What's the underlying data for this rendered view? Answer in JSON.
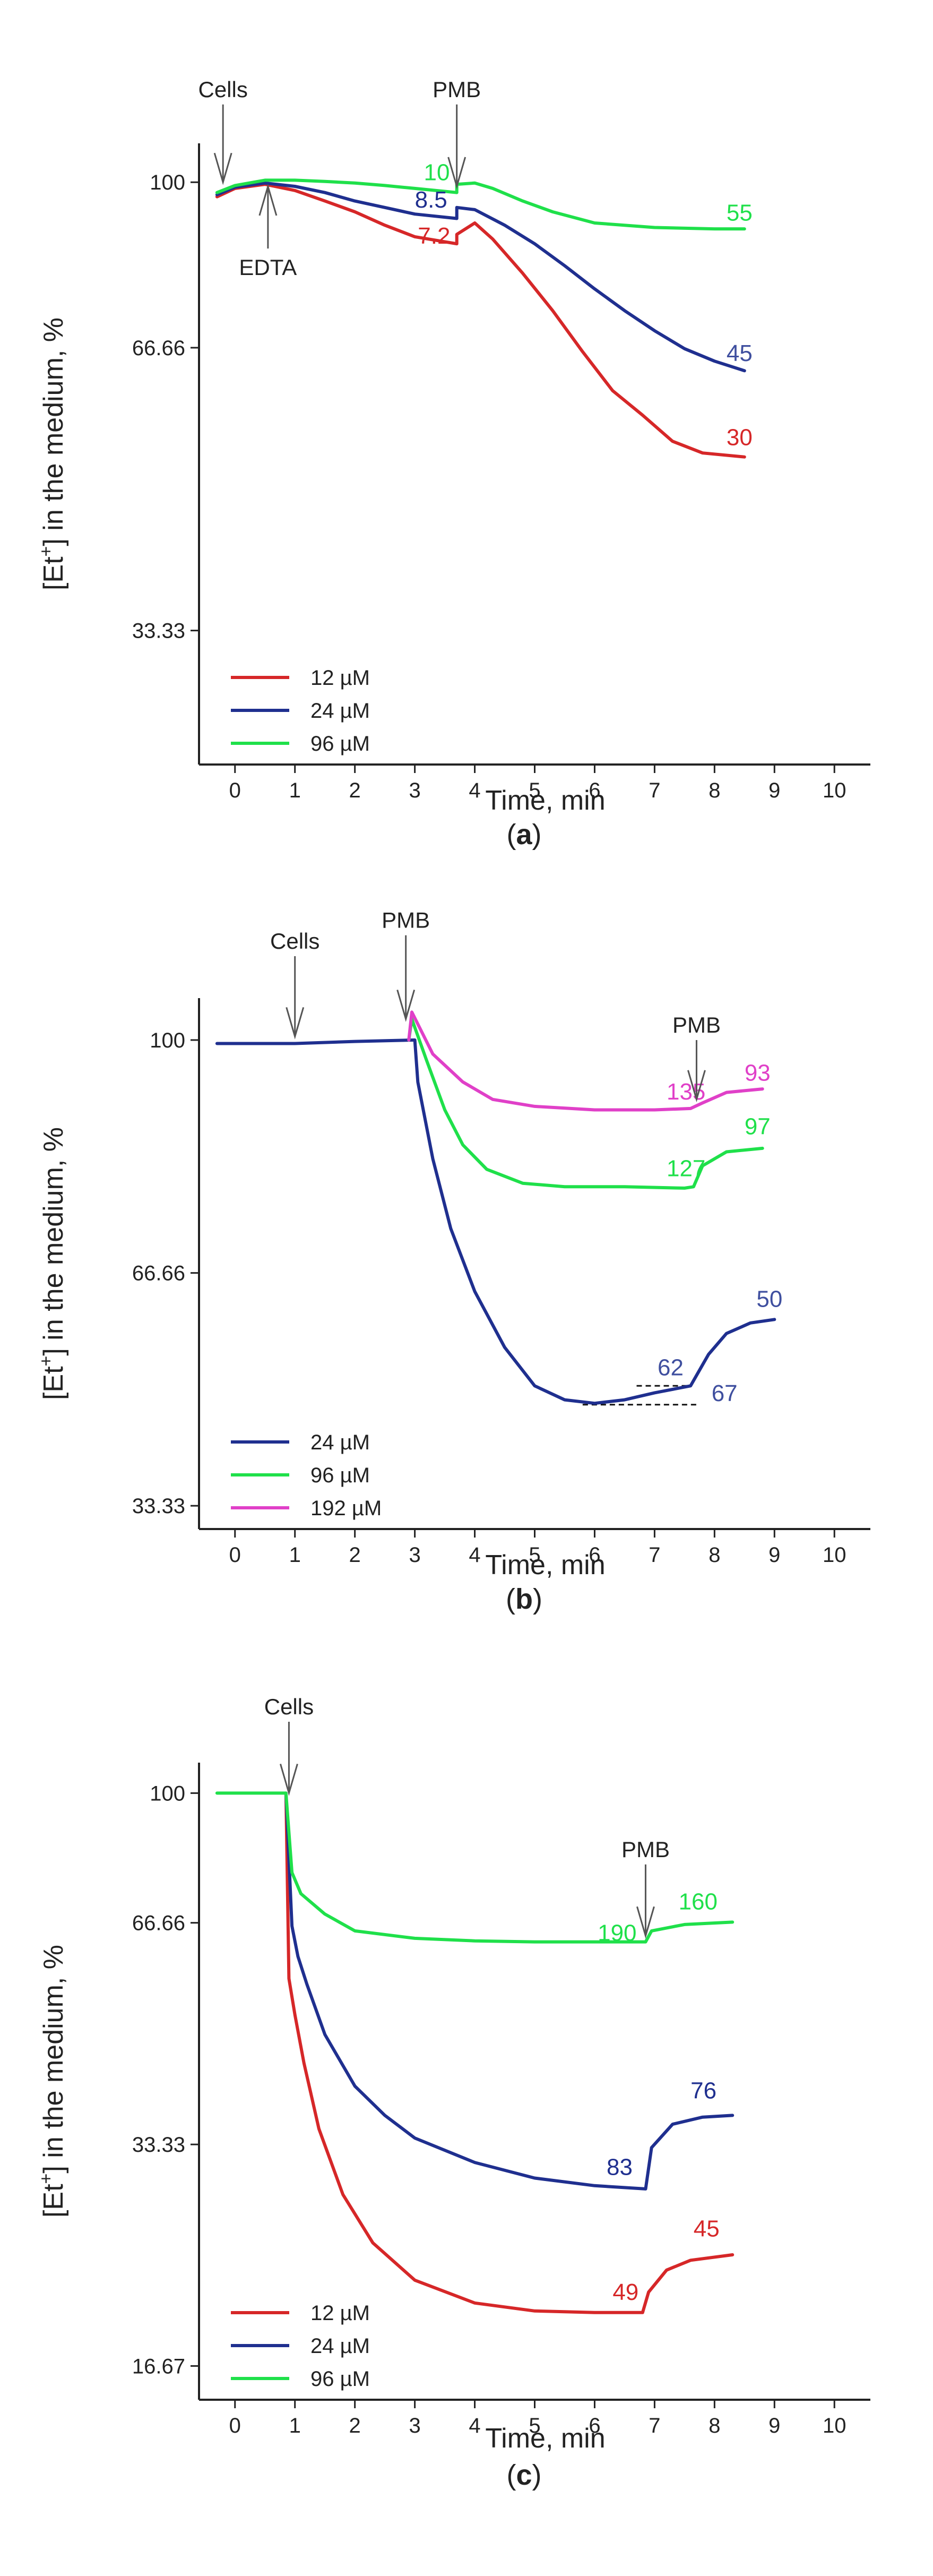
{
  "chart_data": [
    {
      "panel": "a",
      "panel_label": "a",
      "type": "line",
      "xlabel": "Time, min",
      "ylabel": "[Et+] in the medium, %",
      "ylabel_main": "[Et",
      "ylabel_sup": "+",
      "ylabel_rest": "] in the medium, %",
      "xlim": [
        -0.6,
        10.6
      ],
      "ylim": [
        24,
        110
      ],
      "log_y": true,
      "x_ticks": [
        0,
        1,
        2,
        3,
        4,
        5,
        6,
        7,
        8,
        9,
        10
      ],
      "y_ticks": [
        {
          "value": 100,
          "label": "100"
        },
        {
          "value": 66.66,
          "label": "66.66"
        },
        {
          "value": 33.33,
          "label": "33.33"
        }
      ],
      "legend": [
        {
          "label": "12 µM",
          "color": "#d62728"
        },
        {
          "label": "24 µM",
          "color": "#1f2f8f"
        },
        {
          "label": "96 µM",
          "color": "#1fe04a"
        }
      ],
      "series": [
        {
          "name": "12 µM",
          "color": "#d62728",
          "points": [
            [
              -0.3,
              96.5
            ],
            [
              0,
              98.5
            ],
            [
              0.5,
              99.5
            ],
            [
              1,
              98
            ],
            [
              1.5,
              95.5
            ],
            [
              2,
              93
            ],
            [
              2.5,
              90
            ],
            [
              3,
              87.5
            ],
            [
              3.7,
              86
            ],
            [
              3.7,
              88
            ],
            [
              4,
              90.5
            ],
            [
              4.3,
              87
            ],
            [
              4.8,
              80
            ],
            [
              5.3,
              73
            ],
            [
              5.8,
              66
            ],
            [
              6.3,
              60
            ],
            [
              6.8,
              56.5
            ],
            [
              7.3,
              53
            ],
            [
              7.8,
              51.5
            ],
            [
              8.5,
              51
            ]
          ]
        },
        {
          "name": "24 µM",
          "color": "#1f2f8f",
          "points": [
            [
              -0.3,
              97
            ],
            [
              0,
              98.8
            ],
            [
              0.5,
              99.8
            ],
            [
              1,
              99
            ],
            [
              1.5,
              97.5
            ],
            [
              2,
              95.5
            ],
            [
              2.5,
              94
            ],
            [
              3,
              92.5
            ],
            [
              3.7,
              91.5
            ],
            [
              3.7,
              94
            ],
            [
              4,
              93.5
            ],
            [
              4.5,
              90
            ],
            [
              5,
              86
            ],
            [
              5.5,
              81.5
            ],
            [
              6,
              77
            ],
            [
              6.5,
              73
            ],
            [
              7,
              69.5
            ],
            [
              7.5,
              66.5
            ],
            [
              8,
              64.5
            ],
            [
              8.5,
              63
            ]
          ]
        },
        {
          "name": "96 µM",
          "color": "#1fe04a",
          "points": [
            [
              -0.3,
              97.5
            ],
            [
              0,
              99.2
            ],
            [
              0.5,
              100.5
            ],
            [
              1,
              100.5
            ],
            [
              1.5,
              100.2
            ],
            [
              2,
              99.8
            ],
            [
              2.5,
              99.2
            ],
            [
              3,
              98.5
            ],
            [
              3.7,
              97.5
            ],
            [
              3.7,
              99.5
            ],
            [
              4,
              99.8
            ],
            [
              4.3,
              98.5
            ],
            [
              4.8,
              95.5
            ],
            [
              5.3,
              93
            ],
            [
              6,
              90.5
            ],
            [
              7,
              89.5
            ],
            [
              8,
              89.2
            ],
            [
              8.5,
              89.2
            ]
          ]
        }
      ],
      "value_labels": [
        {
          "text": "10",
          "x": 3.15,
          "y": 100.5,
          "color": "#1fe04a"
        },
        {
          "text": "8.5",
          "x": 3.0,
          "y": 94.0,
          "color": "#1f2f8f"
        },
        {
          "text": "7.2",
          "x": 3.05,
          "y": 86.0,
          "color": "#d62728"
        },
        {
          "text": "55",
          "x": 8.2,
          "y": 91.0,
          "color": "#1fe04a"
        },
        {
          "text": "45",
          "x": 8.2,
          "y": 64.5,
          "color": "#3f4f9f"
        },
        {
          "text": "30",
          "x": 8.2,
          "y": 52.5,
          "color": "#d62728"
        }
      ],
      "annotations": [
        {
          "text": "Cells",
          "x": -0.2,
          "y_from": 121,
          "y_to": 100,
          "dir": "down"
        },
        {
          "text": "PMB",
          "x": 3.7,
          "y_from": 121,
          "y_to": 99,
          "dir": "down"
        },
        {
          "text": "EDTA",
          "x": 0.55,
          "y_from": 85,
          "y_to": 99,
          "dir": "up"
        }
      ]
    },
    {
      "panel": "b",
      "panel_label": "b",
      "type": "line",
      "xlabel": "Time, min",
      "ylabel": "[Et+] in the medium, %",
      "ylabel_main": "[Et",
      "ylabel_sup": "+",
      "ylabel_rest": "] in the medium, %",
      "xlim": [
        -0.6,
        10.6
      ],
      "ylim": [
        30,
        106
      ],
      "log_y": false,
      "x_ticks": [
        0,
        1,
        2,
        3,
        4,
        5,
        6,
        7,
        8,
        9,
        10
      ],
      "y_ticks": [
        {
          "value": 100,
          "label": "100"
        },
        {
          "value": 66.66,
          "label": "66.66"
        },
        {
          "value": 33.33,
          "label": "33.33"
        }
      ],
      "legend": [
        {
          "label": "24 µM",
          "color": "#1f2f8f"
        },
        {
          "label": "96 µM",
          "color": "#1fe04a"
        },
        {
          "label": "192 µM",
          "color": "#e040c8"
        }
      ],
      "series": [
        {
          "name": "24 µM",
          "color": "#1f2f8f",
          "points": [
            [
              -0.3,
              99.5
            ],
            [
              1,
              99.5
            ],
            [
              2,
              99.8
            ],
            [
              3,
              100
            ],
            [
              3.05,
              94
            ],
            [
              3.3,
              83
            ],
            [
              3.6,
              73
            ],
            [
              4,
              64
            ],
            [
              4.5,
              56
            ],
            [
              5,
              50.5
            ],
            [
              5.5,
              48.5
            ],
            [
              6,
              48
            ],
            [
              6.5,
              48.5
            ],
            [
              7,
              49.5
            ],
            [
              7.6,
              50.5
            ],
            [
              7.7,
              52
            ],
            [
              7.9,
              55
            ],
            [
              8.2,
              58
            ],
            [
              8.6,
              59.5
            ],
            [
              9,
              60
            ]
          ]
        },
        {
          "name": "96 µM",
          "color": "#1fe04a",
          "points": [
            [
              2.9,
              100
            ],
            [
              2.95,
              103
            ],
            [
              3.2,
              97
            ],
            [
              3.5,
              90
            ],
            [
              3.8,
              85
            ],
            [
              4.2,
              81.5
            ],
            [
              4.8,
              79.5
            ],
            [
              5.5,
              79
            ],
            [
              6.5,
              79
            ],
            [
              7.5,
              78.8
            ],
            [
              7.65,
              79
            ],
            [
              7.8,
              82
            ],
            [
              8.2,
              84
            ],
            [
              8.8,
              84.5
            ]
          ]
        },
        {
          "name": "192 µM",
          "color": "#e040c8",
          "points": [
            [
              2.9,
              100
            ],
            [
              2.95,
              104
            ],
            [
              3.3,
              98
            ],
            [
              3.8,
              94
            ],
            [
              4.3,
              91.5
            ],
            [
              5,
              90.5
            ],
            [
              6,
              90
            ],
            [
              7,
              90
            ],
            [
              7.6,
              90.2
            ],
            [
              7.8,
              91
            ],
            [
              8.2,
              92.5
            ],
            [
              8.8,
              93
            ]
          ]
        }
      ],
      "dashed_lines": [
        {
          "x1": 6.7,
          "x2": 7.6,
          "y": 50.5
        },
        {
          "x1": 5.8,
          "x2": 7.7,
          "y": 47.8
        }
      ],
      "value_labels": [
        {
          "text": "135",
          "x": 7.2,
          "y": 91.5,
          "color": "#e040c8"
        },
        {
          "text": "93",
          "x": 8.5,
          "y": 94.2,
          "color": "#e040c8"
        },
        {
          "text": "127",
          "x": 7.2,
          "y": 80.5,
          "color": "#1fe04a"
        },
        {
          "text": "97",
          "x": 8.5,
          "y": 86.5,
          "color": "#1fe04a"
        },
        {
          "text": "62",
          "x": 7.05,
          "y": 52.0,
          "color": "#3f4f9f"
        },
        {
          "text": "67",
          "x": 7.95,
          "y": 48.3,
          "color": "#3f4f9f"
        },
        {
          "text": "50",
          "x": 8.7,
          "y": 61.8,
          "color": "#3f4f9f"
        }
      ],
      "annotations": [
        {
          "text": "Cells",
          "x": 1.0,
          "y_from": 112,
          "y_to": 100.5,
          "dir": "down"
        },
        {
          "text": "PMB",
          "x": 2.85,
          "y_from": 115,
          "y_to": 103,
          "dir": "down"
        },
        {
          "text": "PMB",
          "x": 7.7,
          "y_from": 100,
          "y_to": 91.5,
          "dir": "down"
        }
      ]
    },
    {
      "panel": "c",
      "panel_label": "c",
      "type": "line",
      "xlabel": "Time, min",
      "ylabel": "[Et+] in the medium, %",
      "ylabel_main": "[Et",
      "ylabel_sup": "+",
      "ylabel_rest": "] in the medium, %",
      "xlim": [
        -0.6,
        10.6
      ],
      "ylim": [
        15,
        110
      ],
      "log_y": true,
      "x_ticks": [
        0,
        1,
        2,
        3,
        4,
        5,
        6,
        7,
        8,
        9,
        10
      ],
      "y_ticks": [
        {
          "value": 100,
          "label": "100"
        },
        {
          "value": 66.66,
          "label": "66.66"
        },
        {
          "value": 33.33,
          "label": "33.33"
        },
        {
          "value": 16.67,
          "label": "16.67"
        }
      ],
      "legend": [
        {
          "label": "12 µM",
          "color": "#d62728"
        },
        {
          "label": "24 µM",
          "color": "#1f2f8f"
        },
        {
          "label": "96 µM",
          "color": "#1fe04a"
        }
      ],
      "series": [
        {
          "name": "12 µM",
          "color": "#d62728",
          "points": [
            [
              0.85,
              100
            ],
            [
              0.9,
              56
            ],
            [
              1.0,
              50
            ],
            [
              1.15,
              43
            ],
            [
              1.4,
              35
            ],
            [
              1.8,
              28.5
            ],
            [
              2.3,
              24.5
            ],
            [
              3,
              21.8
            ],
            [
              4,
              20.3
            ],
            [
              5,
              19.8
            ],
            [
              6,
              19.7
            ],
            [
              6.8,
              19.7
            ],
            [
              6.9,
              21
            ],
            [
              7.2,
              22.5
            ],
            [
              7.6,
              23.2
            ],
            [
              8.3,
              23.6
            ]
          ]
        },
        {
          "name": "24 µM",
          "color": "#1f2f8f",
          "points": [
            [
              0.85,
              100
            ],
            [
              0.95,
              66
            ],
            [
              1.05,
              60
            ],
            [
              1.2,
              55
            ],
            [
              1.5,
              47
            ],
            [
              2,
              40
            ],
            [
              2.5,
              36.5
            ],
            [
              3,
              34
            ],
            [
              4,
              31.5
            ],
            [
              5,
              30
            ],
            [
              6,
              29.3
            ],
            [
              6.85,
              29
            ],
            [
              6.95,
              33
            ],
            [
              7.3,
              35.5
            ],
            [
              7.8,
              36.3
            ],
            [
              8.3,
              36.5
            ]
          ]
        },
        {
          "name": "96 µM",
          "color": "#1fe04a",
          "points": [
            [
              -0.3,
              100
            ],
            [
              0.5,
              100
            ],
            [
              0.85,
              100
            ],
            [
              0.95,
              78
            ],
            [
              1.1,
              73
            ],
            [
              1.5,
              68.5
            ],
            [
              2,
              65
            ],
            [
              3,
              63.5
            ],
            [
              4,
              63
            ],
            [
              5,
              62.8
            ],
            [
              6,
              62.8
            ],
            [
              6.85,
              62.8
            ],
            [
              6.95,
              65
            ],
            [
              7.5,
              66.3
            ],
            [
              8.3,
              66.8
            ]
          ]
        }
      ],
      "value_labels": [
        {
          "text": "190",
          "x": 6.05,
          "y": 63.0,
          "color": "#1fe04a"
        },
        {
          "text": "160",
          "x": 7.4,
          "y": 69.5,
          "color": "#1fe04a"
        },
        {
          "text": "83",
          "x": 6.2,
          "y": 30.3,
          "color": "#1f2f8f"
        },
        {
          "text": "76",
          "x": 7.6,
          "y": 38.5,
          "color": "#1f2f8f"
        },
        {
          "text": "49",
          "x": 6.3,
          "y": 20.5,
          "color": "#d62728"
        },
        {
          "text": "45",
          "x": 7.65,
          "y": 25.0,
          "color": "#d62728"
        }
      ],
      "annotations": [
        {
          "text": "Cells",
          "x": 0.9,
          "y_from": 125,
          "y_to": 100,
          "dir": "down"
        },
        {
          "text": "PMB",
          "x": 6.85,
          "y_from": 80,
          "y_to": 64,
          "dir": "down"
        }
      ]
    }
  ]
}
